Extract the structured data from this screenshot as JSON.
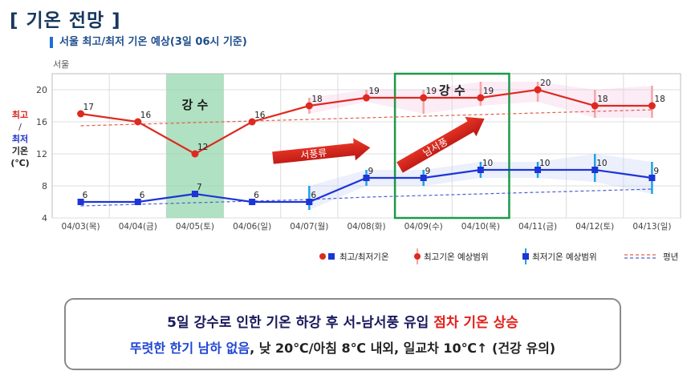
{
  "heading": "[ 기온 전망 ]",
  "subtitle": "서울 최고/최저 기온 예상(3일 06시 기준)",
  "city": "서울",
  "ylabel": {
    "max": "최고",
    "slash": "/",
    "min": "최저",
    "unit1": "기온",
    "unit2": "(℃)"
  },
  "annotations": {
    "rain1": "강 수",
    "rain2": "강 수",
    "wind1": "서풍류",
    "wind2": "남서풍"
  },
  "legend": {
    "item1": "최고/최저기온",
    "item2": "최고기온 예상범위",
    "item3": "최저기온 예상범위",
    "item4": "평년"
  },
  "summary": {
    "line1_a": "5일 강수로 인한 기온 하강 후 서-남서풍 유입 ",
    "line1_b": "점차 기온 상승",
    "line2_a": "뚜렷한 한기 남하 없음",
    "line2_b": ", 낮 20℃/아침 8℃ 내외, 일교차 10℃↑ (건강 유의)"
  },
  "colors": {
    "max": "#dd2a1f",
    "min": "#1d35d6",
    "max_range": "#f4a5a5",
    "min_range": "#1aa3e8",
    "rain_fill": "#8fd4a8",
    "highlight_box": "#1d9a47",
    "arrow": "#d8221b"
  },
  "chart_data": {
    "type": "line",
    "categories": [
      "04/03(목)",
      "04/04(금)",
      "04/05(토)",
      "04/06(일)",
      "04/07(월)",
      "04/08(화)",
      "04/09(수)",
      "04/10(목)",
      "04/11(금)",
      "04/12(토)",
      "04/13(일)"
    ],
    "ylim": [
      4,
      22
    ],
    "yticks": [
      4,
      8,
      12,
      16,
      20
    ],
    "series": [
      {
        "name": "최고기온",
        "values": [
          17,
          16,
          12,
          16,
          18,
          19,
          19,
          19,
          20,
          18,
          18
        ]
      },
      {
        "name": "최저기온",
        "values": [
          6,
          6,
          7,
          6,
          6,
          9,
          9,
          10,
          10,
          10,
          9
        ]
      }
    ],
    "max_range": [
      null,
      null,
      null,
      null,
      [
        17,
        19
      ],
      [
        18.5,
        20
      ],
      [
        17,
        20
      ],
      [
        18,
        21
      ],
      [
        18.5,
        21
      ],
      [
        16.5,
        20
      ],
      [
        16.5,
        20.5
      ]
    ],
    "min_range": [
      null,
      null,
      null,
      null,
      [
        5,
        8
      ],
      [
        8,
        10
      ],
      [
        8,
        10
      ],
      [
        9,
        11
      ],
      [
        9,
        11
      ],
      [
        8.5,
        12
      ],
      [
        7,
        11
      ]
    ],
    "normal_max": [
      15.5,
      15.7,
      15.9,
      16.1,
      16.3,
      16.5,
      16.7,
      16.9,
      17.1,
      17.3,
      17.5
    ],
    "normal_min": [
      5.5,
      5.7,
      5.9,
      6.1,
      6.3,
      6.6,
      6.8,
      7.0,
      7.2,
      7.4,
      7.6
    ],
    "grid": true
  }
}
